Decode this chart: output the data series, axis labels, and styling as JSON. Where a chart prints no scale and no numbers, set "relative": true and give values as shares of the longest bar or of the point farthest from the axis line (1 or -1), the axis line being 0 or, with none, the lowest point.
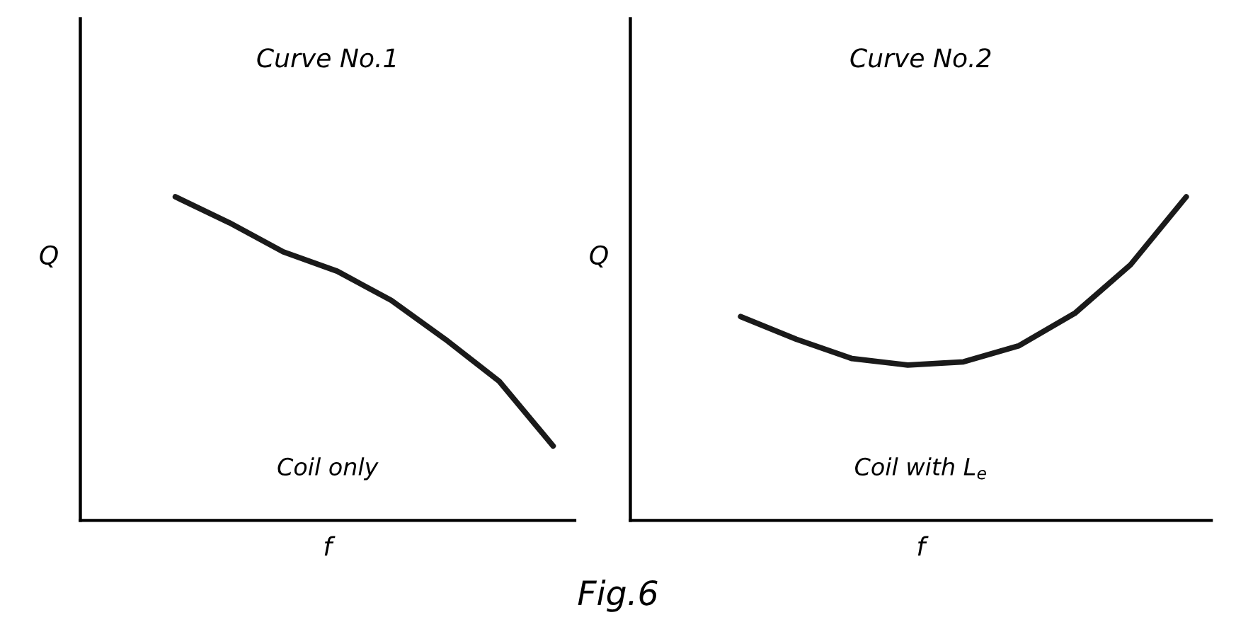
{
  "chart_data": [
    {
      "type": "line",
      "relative": true,
      "title": "Curve No.1",
      "xlabel": "f",
      "ylabel": "Q",
      "tick_labels": false,
      "grid": false,
      "categories": [
        null,
        null,
        null,
        null,
        null,
        null,
        null,
        null
      ],
      "series": [
        {
          "color": "#1a1a1a",
          "values": [
            1,
            0.92,
            0.83,
            0.77,
            0.68,
            0.56,
            0.43,
            0.23
          ]
        }
      ],
      "annotations": [
        "Coil only"
      ]
    },
    {
      "type": "line",
      "relative": true,
      "title": "Curve No.2",
      "xlabel": "f",
      "ylabel": "Q",
      "tick_labels": false,
      "grid": false,
      "categories": [
        null,
        null,
        null,
        null,
        null,
        null,
        null,
        null,
        null
      ],
      "series": [
        {
          "color": "#1a1a1a",
          "values": [
            0.63,
            0.56,
            0.5,
            0.48,
            0.49,
            0.54,
            0.64,
            0.79,
            1
          ]
        }
      ],
      "annotations": [
        "Coil with L$_{e}$",
        "Fig.6"
      ]
    }
  ]
}
